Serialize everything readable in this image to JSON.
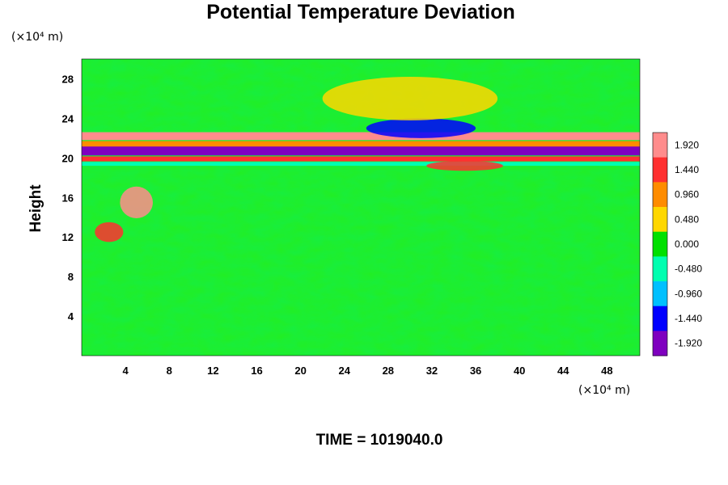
{
  "chart_data": {
    "type": "heatmap",
    "title": "Potential Temperature Deviation",
    "ylabel": "Height",
    "y_unit": "(×10⁴ m)",
    "x_unit": "(×10⁴ m)",
    "time_label": "TIME = 1019040.0",
    "xlim": [
      0,
      51
    ],
    "ylim": [
      0,
      30
    ],
    "x_ticks": [
      4,
      8,
      12,
      16,
      20,
      24,
      28,
      32,
      36,
      40,
      44,
      48
    ],
    "y_ticks": [
      4,
      8,
      12,
      16,
      20,
      24,
      28
    ],
    "colorbar": {
      "min": -2.04,
      "max": 2.04,
      "labels": [
        "1.920",
        "1.440",
        "0.960",
        "0.480",
        "0.000",
        "-0.480",
        "-0.960",
        "-1.440",
        "-1.920"
      ],
      "label_values": [
        1.92,
        1.44,
        0.96,
        0.48,
        0.0,
        -0.48,
        -0.96,
        -1.44,
        -1.92
      ],
      "colors": [
        "#ff8c8c",
        "#ff3030",
        "#ff8c00",
        "#ffd700",
        "#00e000",
        "#00ffb0",
        "#00c0ff",
        "#0000ff",
        "#7f00bf"
      ]
    },
    "features": [
      {
        "kind": "band",
        "y_center": 22.2,
        "thickness": 0.8,
        "value": 1.9
      },
      {
        "kind": "band",
        "y_center": 21.4,
        "thickness": 0.6,
        "value": 1.0
      },
      {
        "kind": "band",
        "y_center": 20.7,
        "thickness": 0.9,
        "value": -1.9
      },
      {
        "kind": "band",
        "y_center": 19.9,
        "thickness": 0.5,
        "value": 1.6
      },
      {
        "kind": "band",
        "y_center": 19.4,
        "thickness": 0.4,
        "value": -0.6
      },
      {
        "kind": "blob",
        "x": 5,
        "y": 15.5,
        "rx": 1.5,
        "ry": 1.6,
        "value": 1.7
      },
      {
        "kind": "blob",
        "x": 2.5,
        "y": 12.5,
        "rx": 1.3,
        "ry": 1.0,
        "value": 1.6
      },
      {
        "kind": "blob",
        "x": 31,
        "y": 23.0,
        "rx": 5,
        "ry": 1.0,
        "value": -1.4
      },
      {
        "kind": "blob",
        "x": 35,
        "y": 19.2,
        "rx": 3.5,
        "ry": 0.5,
        "value": 1.5
      },
      {
        "kind": "blob",
        "x": 30,
        "y": 26.0,
        "rx": 8,
        "ry": 2.2,
        "value": 0.4
      }
    ]
  }
}
